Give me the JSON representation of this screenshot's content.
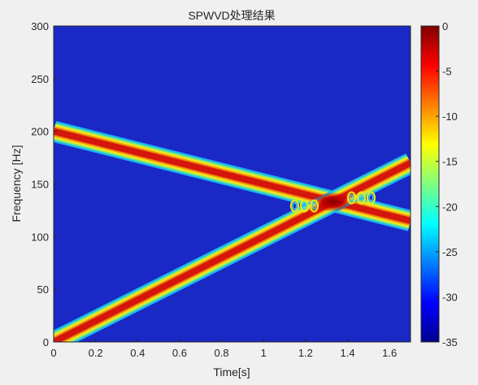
{
  "chart_data": {
    "type": "heatmap",
    "title": "SPWVD处理结果",
    "xlabel": "Time[s]",
    "ylabel": "Frequency [Hz]",
    "xlim": [
      0,
      1.7
    ],
    "ylim": [
      0,
      300
    ],
    "x_ticks": [
      "0",
      "0.2",
      "0.4",
      "0.6",
      "0.8",
      "1",
      "1.2",
      "1.4",
      "1.6"
    ],
    "x_tick_values": [
      0,
      0.2,
      0.4,
      0.6,
      0.8,
      1.0,
      1.2,
      1.4,
      1.6
    ],
    "y_ticks": [
      "0",
      "50",
      "100",
      "150",
      "200",
      "250",
      "300"
    ],
    "y_tick_values": [
      0,
      50,
      100,
      150,
      200,
      250,
      300
    ],
    "colorbar": {
      "colormap": "jet",
      "range": [
        -35,
        0
      ],
      "ticks": [
        "0",
        "-5",
        "-10",
        "-15",
        "-20",
        "-25",
        "-30",
        "-35"
      ],
      "tick_values": [
        0,
        -5,
        -10,
        -15,
        -20,
        -25,
        -30,
        -35
      ]
    },
    "series": [
      {
        "x": [
          0,
          1.7
        ],
        "y": [
          200,
          115
        ]
      },
      {
        "x": [
          0,
          1.7
        ],
        "y": [
          0,
          170
        ]
      }
    ],
    "intersection": {
      "x": 1.33,
      "y": 133
    },
    "colors": {
      "background": "#1a28c6",
      "ridge_core": "#cc1010",
      "peak": "#8b0000"
    }
  }
}
